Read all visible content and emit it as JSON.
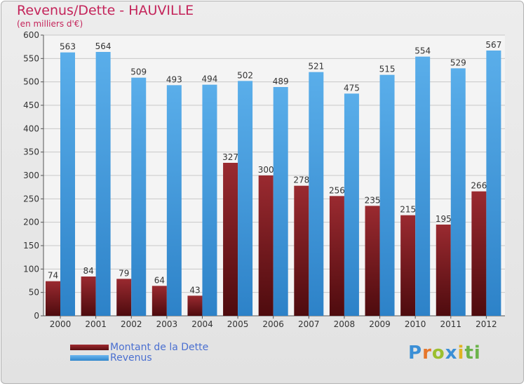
{
  "chart_data": {
    "type": "bar",
    "title": "Revenus/Dette - HAUVILLE",
    "subtitle": "(en milliers d'€)",
    "categories": [
      "2000",
      "2001",
      "2002",
      "2003",
      "2004",
      "2005",
      "2006",
      "2007",
      "2008",
      "2009",
      "2010",
      "2011",
      "2012"
    ],
    "series": [
      {
        "name": "Montant de la Dette",
        "values": [
          74,
          84,
          79,
          64,
          43,
          327,
          300,
          278,
          256,
          235,
          215,
          195,
          266
        ]
      },
      {
        "name": "Revenus",
        "values": [
          563,
          564,
          509,
          493,
          494,
          502,
          489,
          521,
          475,
          515,
          554,
          529,
          567
        ]
      }
    ],
    "ylim": [
      0,
      600
    ],
    "yticks": [
      0,
      50,
      100,
      150,
      200,
      250,
      300,
      350,
      400,
      450,
      500,
      550,
      600
    ],
    "grid": true,
    "legend_position": "bottom-left"
  },
  "colors": {
    "debt": "#7a1c20",
    "revenue": "#4a9fe0",
    "title": "#c4245a",
    "legend_text": "#4a6fd0"
  },
  "logo": {
    "text": "Proxiti",
    "letters": [
      "P",
      "r",
      "o",
      "x",
      "i",
      "ti"
    ]
  }
}
